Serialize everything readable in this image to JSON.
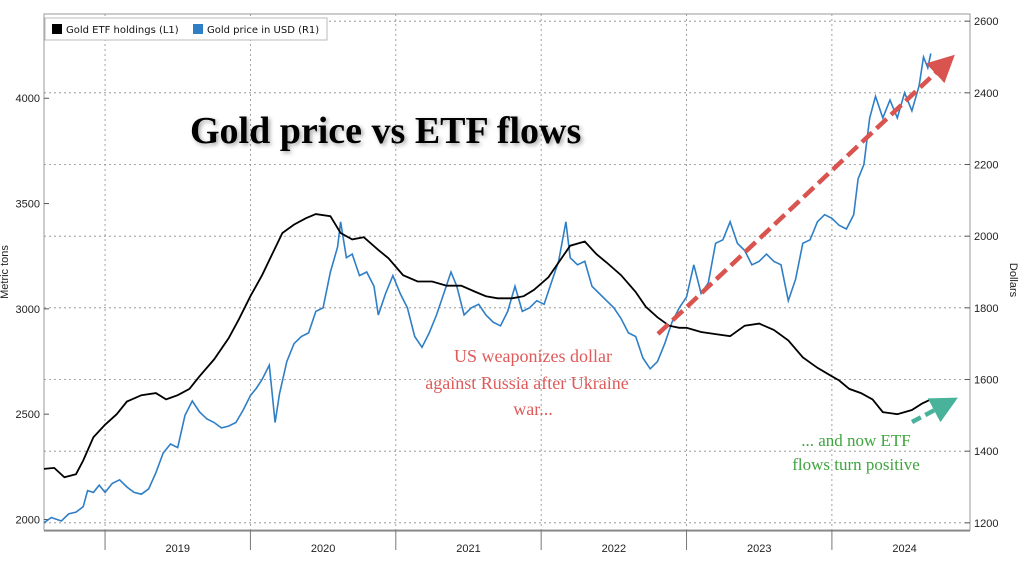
{
  "chart_data": {
    "type": "line",
    "title": "Gold price vs ETF flows",
    "ylabel_left": "Metric tons",
    "ylabel_right": "Dollars",
    "ylim_left": [
      1950,
      4400
    ],
    "ylim_right": [
      1180,
      2620
    ],
    "left_ticks": [
      "2000",
      "2500",
      "3000",
      "3500",
      "4000"
    ],
    "right_ticks": [
      "1200",
      "1400",
      "1600",
      "1800",
      "2000",
      "2200",
      "2400",
      "2600"
    ],
    "x_ticks": [
      "2019",
      "2020",
      "2021",
      "2022",
      "2023",
      "2024"
    ],
    "x_range": [
      2018.58,
      2024.95
    ],
    "grid": true,
    "legend_position": "top-left",
    "colors": {
      "etf": "#000000",
      "gold": "#2f7fc6",
      "red_arrow": "#d9534f",
      "green_arrow": "#48b39a"
    },
    "series": [
      {
        "name": "Gold ETF holdings (L1)",
        "axis": "left",
        "points": [
          [
            2018.58,
            2240
          ],
          [
            2018.65,
            2245
          ],
          [
            2018.72,
            2200
          ],
          [
            2018.8,
            2215
          ],
          [
            2018.85,
            2280
          ],
          [
            2018.92,
            2390
          ],
          [
            2019.0,
            2450
          ],
          [
            2019.08,
            2500
          ],
          [
            2019.15,
            2560
          ],
          [
            2019.25,
            2590
          ],
          [
            2019.35,
            2600
          ],
          [
            2019.42,
            2570
          ],
          [
            2019.5,
            2590
          ],
          [
            2019.58,
            2620
          ],
          [
            2019.65,
            2680
          ],
          [
            2019.75,
            2760
          ],
          [
            2019.85,
            2860
          ],
          [
            2019.92,
            2950
          ],
          [
            2020.0,
            3060
          ],
          [
            2020.08,
            3160
          ],
          [
            2020.15,
            3260
          ],
          [
            2020.22,
            3360
          ],
          [
            2020.3,
            3400
          ],
          [
            2020.38,
            3430
          ],
          [
            2020.45,
            3450
          ],
          [
            2020.55,
            3440
          ],
          [
            2020.62,
            3360
          ],
          [
            2020.7,
            3330
          ],
          [
            2020.78,
            3340
          ],
          [
            2020.88,
            3280
          ],
          [
            2020.95,
            3240
          ],
          [
            2021.05,
            3160
          ],
          [
            2021.15,
            3130
          ],
          [
            2021.25,
            3130
          ],
          [
            2021.35,
            3110
          ],
          [
            2021.45,
            3110
          ],
          [
            2021.55,
            3080
          ],
          [
            2021.62,
            3060
          ],
          [
            2021.7,
            3050
          ],
          [
            2021.8,
            3050
          ],
          [
            2021.88,
            3060
          ],
          [
            2021.95,
            3090
          ],
          [
            2022.05,
            3150
          ],
          [
            2022.12,
            3220
          ],
          [
            2022.2,
            3300
          ],
          [
            2022.3,
            3320
          ],
          [
            2022.38,
            3260
          ],
          [
            2022.45,
            3220
          ],
          [
            2022.55,
            3160
          ],
          [
            2022.65,
            3080
          ],
          [
            2022.72,
            3010
          ],
          [
            2022.8,
            2960
          ],
          [
            2022.88,
            2920
          ],
          [
            2022.95,
            2910
          ],
          [
            2023.0,
            2910
          ],
          [
            2023.1,
            2890
          ],
          [
            2023.2,
            2880
          ],
          [
            2023.3,
            2870
          ],
          [
            2023.4,
            2920
          ],
          [
            2023.5,
            2930
          ],
          [
            2023.6,
            2900
          ],
          [
            2023.7,
            2850
          ],
          [
            2023.8,
            2770
          ],
          [
            2023.9,
            2720
          ],
          [
            2024.0,
            2680
          ],
          [
            2024.05,
            2660
          ],
          [
            2024.12,
            2620
          ],
          [
            2024.2,
            2600
          ],
          [
            2024.28,
            2570
          ],
          [
            2024.35,
            2510
          ],
          [
            2024.45,
            2500
          ],
          [
            2024.55,
            2520
          ],
          [
            2024.62,
            2550
          ],
          [
            2024.68,
            2570
          ]
        ]
      },
      {
        "name": "Gold price in USD (R1)",
        "axis": "right",
        "points": [
          [
            2018.58,
            1200
          ],
          [
            2018.63,
            1215
          ],
          [
            2018.7,
            1205
          ],
          [
            2018.75,
            1225
          ],
          [
            2018.8,
            1230
          ],
          [
            2018.85,
            1245
          ],
          [
            2018.88,
            1290
          ],
          [
            2018.92,
            1285
          ],
          [
            2018.96,
            1305
          ],
          [
            2019.0,
            1285
          ],
          [
            2019.05,
            1310
          ],
          [
            2019.1,
            1320
          ],
          [
            2019.15,
            1300
          ],
          [
            2019.2,
            1285
          ],
          [
            2019.25,
            1280
          ],
          [
            2019.3,
            1295
          ],
          [
            2019.35,
            1340
          ],
          [
            2019.4,
            1395
          ],
          [
            2019.45,
            1420
          ],
          [
            2019.5,
            1410
          ],
          [
            2019.55,
            1500
          ],
          [
            2019.6,
            1540
          ],
          [
            2019.65,
            1510
          ],
          [
            2019.7,
            1490
          ],
          [
            2019.75,
            1480
          ],
          [
            2019.8,
            1465
          ],
          [
            2019.85,
            1470
          ],
          [
            2019.9,
            1480
          ],
          [
            2019.95,
            1515
          ],
          [
            2020.0,
            1555
          ],
          [
            2020.04,
            1575
          ],
          [
            2020.08,
            1600
          ],
          [
            2020.13,
            1640
          ],
          [
            2020.17,
            1480
          ],
          [
            2020.2,
            1560
          ],
          [
            2020.25,
            1650
          ],
          [
            2020.3,
            1700
          ],
          [
            2020.35,
            1720
          ],
          [
            2020.4,
            1730
          ],
          [
            2020.45,
            1790
          ],
          [
            2020.5,
            1800
          ],
          [
            2020.55,
            1900
          ],
          [
            2020.6,
            1970
          ],
          [
            2020.62,
            2040
          ],
          [
            2020.66,
            1940
          ],
          [
            2020.7,
            1950
          ],
          [
            2020.75,
            1890
          ],
          [
            2020.8,
            1900
          ],
          [
            2020.85,
            1860
          ],
          [
            2020.88,
            1780
          ],
          [
            2020.93,
            1840
          ],
          [
            2020.98,
            1890
          ],
          [
            2021.03,
            1840
          ],
          [
            2021.08,
            1800
          ],
          [
            2021.13,
            1720
          ],
          [
            2021.18,
            1690
          ],
          [
            2021.23,
            1730
          ],
          [
            2021.28,
            1780
          ],
          [
            2021.33,
            1840
          ],
          [
            2021.38,
            1900
          ],
          [
            2021.42,
            1860
          ],
          [
            2021.47,
            1780
          ],
          [
            2021.52,
            1800
          ],
          [
            2021.57,
            1810
          ],
          [
            2021.62,
            1780
          ],
          [
            2021.67,
            1760
          ],
          [
            2021.72,
            1750
          ],
          [
            2021.77,
            1790
          ],
          [
            2021.82,
            1860
          ],
          [
            2021.87,
            1790
          ],
          [
            2021.92,
            1800
          ],
          [
            2021.97,
            1820
          ],
          [
            2022.02,
            1810
          ],
          [
            2022.07,
            1870
          ],
          [
            2022.12,
            1930
          ],
          [
            2022.17,
            2040
          ],
          [
            2022.2,
            1940
          ],
          [
            2022.25,
            1920
          ],
          [
            2022.3,
            1930
          ],
          [
            2022.35,
            1860
          ],
          [
            2022.4,
            1840
          ],
          [
            2022.45,
            1820
          ],
          [
            2022.5,
            1800
          ],
          [
            2022.55,
            1770
          ],
          [
            2022.6,
            1730
          ],
          [
            2022.65,
            1720
          ],
          [
            2022.7,
            1660
          ],
          [
            2022.75,
            1630
          ],
          [
            2022.8,
            1650
          ],
          [
            2022.85,
            1700
          ],
          [
            2022.9,
            1760
          ],
          [
            2022.95,
            1800
          ],
          [
            2023.0,
            1830
          ],
          [
            2023.05,
            1920
          ],
          [
            2023.1,
            1840
          ],
          [
            2023.15,
            1870
          ],
          [
            2023.2,
            1980
          ],
          [
            2023.25,
            1990
          ],
          [
            2023.3,
            2040
          ],
          [
            2023.35,
            1980
          ],
          [
            2023.4,
            1960
          ],
          [
            2023.45,
            1920
          ],
          [
            2023.5,
            1930
          ],
          [
            2023.55,
            1950
          ],
          [
            2023.6,
            1930
          ],
          [
            2023.65,
            1920
          ],
          [
            2023.7,
            1820
          ],
          [
            2023.75,
            1880
          ],
          [
            2023.8,
            1980
          ],
          [
            2023.85,
            1990
          ],
          [
            2023.9,
            2040
          ],
          [
            2023.95,
            2060
          ],
          [
            2024.0,
            2050
          ],
          [
            2024.05,
            2030
          ],
          [
            2024.1,
            2020
          ],
          [
            2024.15,
            2060
          ],
          [
            2024.18,
            2160
          ],
          [
            2024.22,
            2200
          ],
          [
            2024.26,
            2330
          ],
          [
            2024.3,
            2390
          ],
          [
            2024.35,
            2330
          ],
          [
            2024.4,
            2380
          ],
          [
            2024.45,
            2330
          ],
          [
            2024.5,
            2400
          ],
          [
            2024.55,
            2350
          ],
          [
            2024.6,
            2420
          ],
          [
            2024.63,
            2500
          ],
          [
            2024.66,
            2470
          ],
          [
            2024.68,
            2510
          ]
        ]
      }
    ],
    "annotations": [
      {
        "id": "ukraine",
        "lines": [
          "US weaponizes dollar",
          "against Russia after Ukraine",
          "war..."
        ],
        "color": "#e05a5a"
      },
      {
        "id": "etf",
        "lines": [
          "... and now ETF",
          "flows turn positive"
        ],
        "color": "#3fa53f"
      }
    ]
  }
}
